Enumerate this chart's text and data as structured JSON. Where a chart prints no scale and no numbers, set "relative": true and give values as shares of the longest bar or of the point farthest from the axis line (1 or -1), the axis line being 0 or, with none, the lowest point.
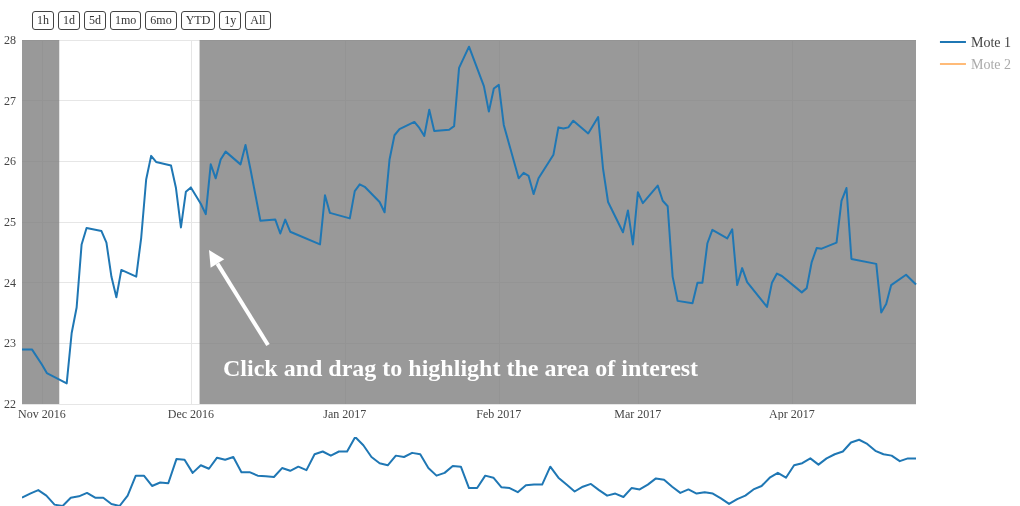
{
  "chart_data": [
    {
      "type": "line",
      "x": [
        "2016-10-28",
        "2016-10-30",
        "2016-11-01",
        "2016-11-02",
        "2016-11-06",
        "2016-11-07",
        "2016-11-08",
        "2016-11-09",
        "2016-11-10",
        "2016-11-13",
        "2016-11-14",
        "2016-11-15",
        "2016-11-16",
        "2016-11-17",
        "2016-11-20",
        "2016-11-21",
        "2016-11-22",
        "2016-11-23",
        "2016-11-24",
        "2016-11-27",
        "2016-11-28",
        "2016-11-29",
        "2016-11-30",
        "2016-12-01",
        "2016-12-03",
        "2016-12-04",
        "2016-12-05",
        "2016-12-06",
        "2016-12-07",
        "2016-12-08",
        "2016-12-11",
        "2016-12-12",
        "2016-12-13",
        "2016-12-15",
        "2016-12-18",
        "2016-12-19",
        "2016-12-20",
        "2016-12-21",
        "2016-12-27",
        "2016-12-28",
        "2016-12-29",
        "2017-01-02",
        "2017-01-03",
        "2017-01-04",
        "2017-01-05",
        "2017-01-08",
        "2017-01-09",
        "2017-01-10",
        "2017-01-11",
        "2017-01-12",
        "2017-01-15",
        "2017-01-16",
        "2017-01-17",
        "2017-01-18",
        "2017-01-19",
        "2017-01-22",
        "2017-01-23",
        "2017-01-24",
        "2017-01-26",
        "2017-01-29",
        "2017-01-30",
        "2017-01-31",
        "2017-02-01",
        "2017-02-02",
        "2017-02-05",
        "2017-02-06",
        "2017-02-07",
        "2017-02-08",
        "2017-02-09",
        "2017-02-12",
        "2017-02-13",
        "2017-02-14",
        "2017-02-15",
        "2017-02-16",
        "2017-02-19",
        "2017-02-21",
        "2017-02-22",
        "2017-02-23",
        "2017-02-26",
        "2017-02-27",
        "2017-02-28",
        "2017-03-01",
        "2017-03-02",
        "2017-03-05",
        "2017-03-06",
        "2017-03-07",
        "2017-03-08",
        "2017-03-09",
        "2017-03-12",
        "2017-03-13",
        "2017-03-14",
        "2017-03-15",
        "2017-03-16",
        "2017-03-19",
        "2017-03-20",
        "2017-03-21",
        "2017-03-22",
        "2017-03-23",
        "2017-03-27",
        "2017-03-28",
        "2017-03-29",
        "2017-03-30",
        "2017-04-03",
        "2017-04-04",
        "2017-04-05",
        "2017-04-06",
        "2017-04-07",
        "2017-04-10",
        "2017-04-11",
        "2017-04-12",
        "2017-04-13",
        "2017-04-18",
        "2017-04-19",
        "2017-04-20",
        "2017-04-21",
        "2017-04-24",
        "2017-04-26"
      ],
      "series": [
        {
          "name": "Mote 1",
          "color": "#1f77b4",
          "values": [
            22.9,
            22.9,
            22.65,
            22.51,
            22.34,
            23.17,
            23.59,
            24.63,
            24.9,
            24.85,
            24.66,
            24.1,
            23.76,
            24.21,
            24.1,
            24.74,
            25.7,
            26.09,
            25.99,
            25.93,
            25.56,
            24.91,
            25.5,
            25.57,
            25.3,
            25.13,
            25.95,
            25.72,
            26.03,
            26.16,
            25.95,
            26.27,
            25.87,
            25.02,
            25.04,
            24.81,
            25.04,
            24.84,
            24.63,
            25.44,
            25.15,
            25.06,
            25.51,
            25.62,
            25.58,
            25.33,
            25.16,
            26.03,
            26.43,
            26.53,
            26.65,
            26.55,
            26.42,
            26.85,
            26.5,
            26.52,
            26.58,
            27.54,
            27.89,
            27.24,
            26.82,
            27.2,
            27.26,
            26.6,
            25.72,
            25.81,
            25.76,
            25.46,
            25.72,
            26.11,
            26.56,
            26.54,
            26.56,
            26.67,
            26.46,
            26.73,
            25.87,
            25.33,
            24.83,
            25.19,
            24.63,
            25.49,
            25.31,
            25.6,
            25.35,
            25.26,
            24.1,
            23.7,
            23.66,
            24.0,
            24.0,
            24.65,
            24.87,
            24.73,
            24.88,
            23.96,
            24.24,
            24.01,
            23.6,
            24.0,
            24.15,
            24.11,
            23.84,
            23.91,
            24.34,
            24.57,
            24.56,
            24.66,
            25.35,
            25.56,
            24.39,
            24.31,
            23.51,
            23.65,
            23.96,
            24.13,
            23.97
          ]
        },
        {
          "name": "Mote 2",
          "color": "#ffbb78",
          "values": [
            null,
            null,
            null,
            null,
            null,
            null,
            null,
            null,
            null,
            null,
            null,
            null,
            null,
            null,
            null,
            null,
            null,
            null,
            null,
            null,
            null,
            null,
            null,
            null,
            null,
            null,
            null,
            null,
            null,
            null,
            null,
            null,
            null,
            null,
            null,
            null,
            null,
            null,
            null,
            null,
            null,
            null,
            null,
            null,
            null,
            null,
            null,
            null,
            null,
            null,
            null,
            null,
            null,
            null,
            null,
            null,
            null,
            null,
            null,
            null,
            null,
            null,
            null,
            null,
            null,
            null,
            null,
            null,
            null,
            null,
            null,
            null,
            null,
            null,
            null,
            null,
            null,
            null,
            null,
            null,
            null,
            null,
            null,
            null,
            null,
            null,
            null,
            null,
            null,
            null,
            null,
            null,
            null,
            null,
            null,
            null,
            null,
            null,
            null,
            null,
            null,
            null,
            null,
            null,
            null,
            null,
            null,
            null,
            null,
            null,
            null,
            null,
            null,
            null,
            null,
            null,
            null
          ]
        }
      ],
      "xlim": [
        "2016-10-28",
        "2017-04-26"
      ],
      "xticks": [
        {
          "value": "2016-11-01",
          "label": "Nov 2016"
        },
        {
          "value": "2016-12-01",
          "label": "Dec 2016"
        },
        {
          "value": "2017-01-01",
          "label": "Jan 2017"
        },
        {
          "value": "2017-02-01",
          "label": "Feb 2017"
        },
        {
          "value": "2017-03-01",
          "label": "Mar 2017"
        },
        {
          "value": "2017-04-01",
          "label": "Apr 2017"
        }
      ],
      "ylim": [
        22,
        28
      ],
      "yticks": [
        22,
        23,
        24,
        25,
        26,
        27,
        28
      ],
      "bands": [
        {
          "axis": "x",
          "from": "2016-10-28",
          "to": "2016-11-04T12:00",
          "color": "#808080"
        },
        {
          "axis": "x",
          "from": "2016-12-02T18:00",
          "to": "2017-04-26",
          "color": "#808080"
        }
      ],
      "annotations": [
        "Click and drag to highlight the area of interest",
        "1h",
        "1d",
        "5d",
        "1mo",
        "6mo",
        "YTD",
        "1y",
        "All"
      ],
      "grid": true,
      "legend": "top right",
      "marker": "none",
      "line_style": "solid"
    },
    {
      "type": "line",
      "relative": true,
      "tick_labels": false,
      "categories": [
        null,
        null,
        null,
        null,
        null,
        null,
        null,
        null,
        null,
        null,
        null,
        null,
        null,
        null,
        null,
        null,
        null,
        null,
        null,
        null,
        null,
        null,
        null,
        null,
        null,
        null,
        null,
        null,
        null,
        null,
        null,
        null,
        null,
        null,
        null,
        null,
        null,
        null,
        null,
        null,
        null,
        null,
        null,
        null,
        null,
        null,
        null,
        null,
        null,
        null,
        null,
        null,
        null,
        null,
        null,
        null,
        null,
        null,
        null,
        null,
        null,
        null,
        null,
        null,
        null,
        null,
        null,
        null,
        null,
        null,
        null,
        null,
        null,
        null,
        null,
        null,
        null,
        null,
        null,
        null,
        null,
        null,
        null,
        null,
        null,
        null,
        null,
        null,
        null,
        null,
        null,
        null,
        null,
        null,
        null,
        null,
        null,
        null,
        null,
        null,
        null,
        null,
        null,
        null,
        null,
        null,
        null,
        null,
        null,
        null,
        null
      ],
      "series": [
        {
          "color": "#1f77b4",
          "values": [
            0.12,
            0.18,
            0.23,
            0.15,
            0.02,
            0,
            0.12,
            0.14,
            0.19,
            0.12,
            0.12,
            0.03,
            0,
            0.15,
            0.44,
            0.44,
            0.29,
            0.34,
            0.33,
            0.68,
            0.67,
            0.48,
            0.59,
            0.54,
            0.7,
            0.67,
            0.71,
            0.49,
            0.49,
            0.44,
            0.43,
            0.42,
            0.55,
            0.51,
            0.57,
            0.52,
            0.75,
            0.79,
            0.73,
            0.79,
            0.79,
            1,
            0.88,
            0.71,
            0.62,
            0.59,
            0.73,
            0.71,
            0.77,
            0.75,
            0.55,
            0.44,
            0.48,
            0.58,
            0.57,
            0.26,
            0.26,
            0.44,
            0.41,
            0.27,
            0.26,
            0.2,
            0.3,
            0.31,
            0.31,
            0.57,
            0.41,
            0.31,
            0.21,
            0.28,
            0.32,
            0.23,
            0.15,
            0.18,
            0.13,
            0.26,
            0.24,
            0.31,
            0.4,
            0.38,
            0.28,
            0.19,
            0.24,
            0.18,
            0.2,
            0.18,
            0.11,
            0.03,
            0.1,
            0.15,
            0.24,
            0.29,
            0.41,
            0.48,
            0.41,
            0.59,
            0.62,
            0.69,
            0.6,
            0.69,
            0.75,
            0.79,
            0.92,
            0.96,
            0.9,
            0.8,
            0.75,
            0.73,
            0.65,
            0.69,
            0.69
          ]
        }
      ],
      "marker": "none",
      "line_style": "solid"
    }
  ]
}
